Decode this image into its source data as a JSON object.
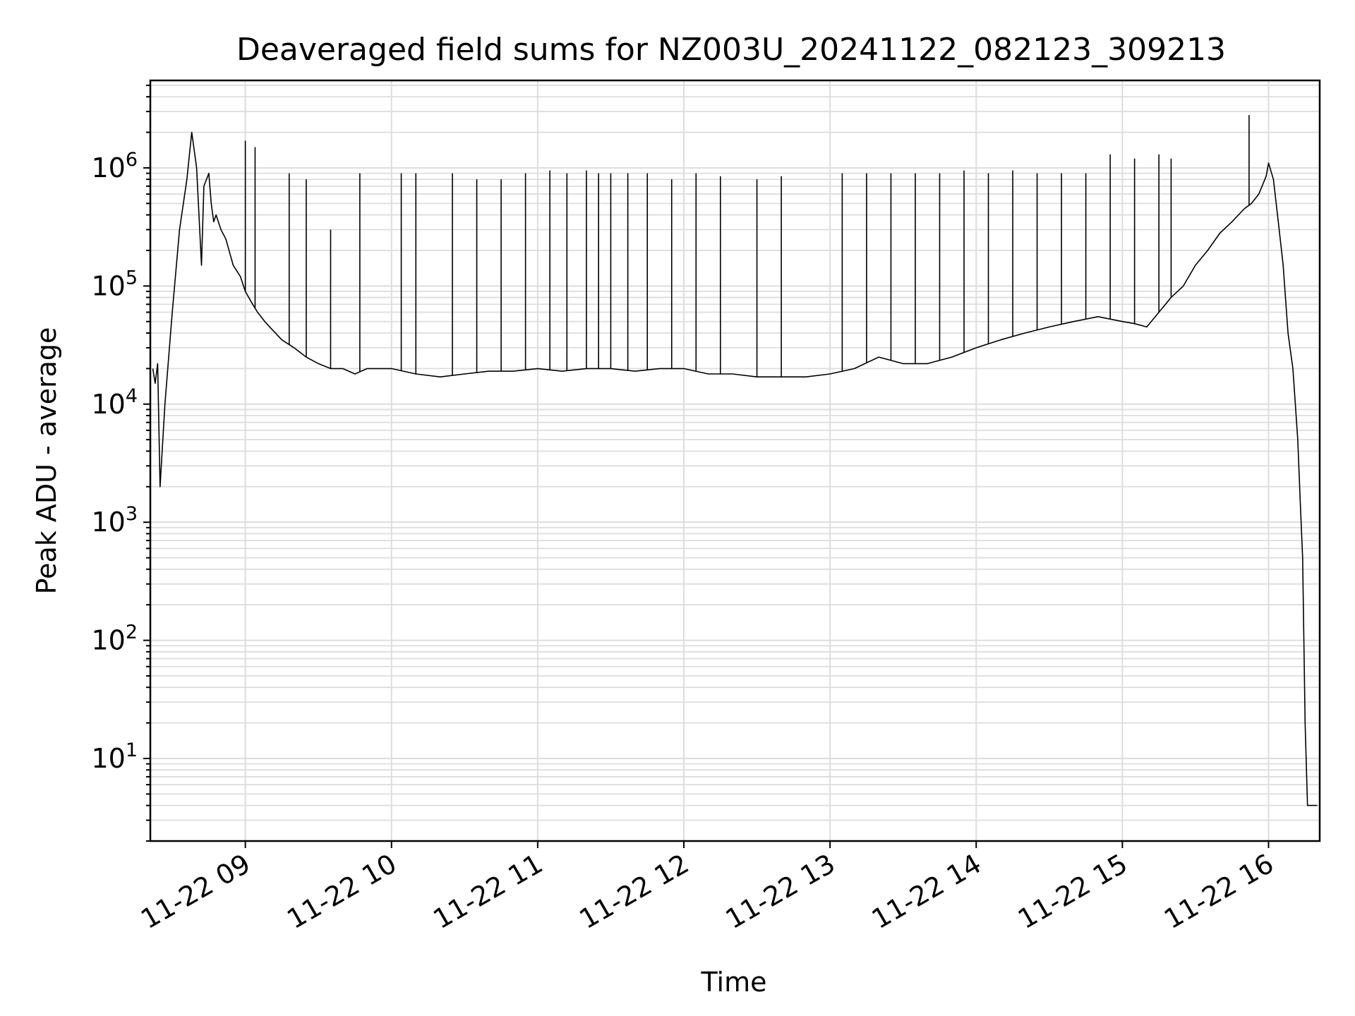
{
  "chart_data": {
    "type": "line",
    "title": "Deaveraged field sums for NZ003U_20241122_082123_309213",
    "xlabel": "Time",
    "ylabel": "Peak ADU - average",
    "yscale": "log",
    "ylim": [
      2,
      5500000
    ],
    "xlim": [
      "2024-11-22 08:21",
      "2024-11-22 16:21"
    ],
    "grid": true,
    "legend": "none",
    "line_color": "#000000",
    "x_ticks": [
      {
        "x": "2024-11-22 09:00",
        "label": "11-22 09"
      },
      {
        "x": "2024-11-22 10:00",
        "label": "11-22 10"
      },
      {
        "x": "2024-11-22 11:00",
        "label": "11-22 11"
      },
      {
        "x": "2024-11-22 12:00",
        "label": "11-22 12"
      },
      {
        "x": "2024-11-22 13:00",
        "label": "11-22 13"
      },
      {
        "x": "2024-11-22 14:00",
        "label": "11-22 14"
      },
      {
        "x": "2024-11-22 15:00",
        "label": "11-22 15"
      },
      {
        "x": "2024-11-22 16:00",
        "label": "11-22 16"
      }
    ],
    "y_ticks": [
      {
        "value": 10,
        "base": "10",
        "exp": "1"
      },
      {
        "value": 100,
        "base": "10",
        "exp": "2"
      },
      {
        "value": 1000,
        "base": "10",
        "exp": "3"
      },
      {
        "value": 10000,
        "base": "10",
        "exp": "4"
      },
      {
        "value": 100000,
        "base": "10",
        "exp": "5"
      },
      {
        "value": 1000000,
        "base": "10",
        "exp": "6"
      }
    ],
    "series": [
      {
        "x": [
          "2024-11-22 08:22",
          "2024-11-22 08:23",
          "2024-11-22 08:24",
          "2024-11-22 08:25",
          "2024-11-22 08:27",
          "2024-11-22 08:30",
          "2024-11-22 08:33",
          "2024-11-22 08:36",
          "2024-11-22 08:38",
          "2024-11-22 08:40",
          "2024-11-22 08:42",
          "2024-11-22 08:43",
          "2024-11-22 08:45",
          "2024-11-22 08:46",
          "2024-11-22 08:47",
          "2024-11-22 08:48",
          "2024-11-22 08:50",
          "2024-11-22 08:52",
          "2024-11-22 08:55",
          "2024-11-22 08:58",
          "2024-11-22 09:00",
          "2024-11-22 09:03",
          "2024-11-22 09:05",
          "2024-11-22 09:08",
          "2024-11-22 09:10",
          "2024-11-22 09:15",
          "2024-11-22 09:20",
          "2024-11-22 09:25",
          "2024-11-22 09:30",
          "2024-11-22 09:35",
          "2024-11-22 09:40",
          "2024-11-22 09:45",
          "2024-11-22 09:50",
          "2024-11-22 10:00",
          "2024-11-22 10:10",
          "2024-11-22 10:20",
          "2024-11-22 10:30",
          "2024-11-22 10:40",
          "2024-11-22 10:50",
          "2024-11-22 11:00",
          "2024-11-22 11:10",
          "2024-11-22 11:20",
          "2024-11-22 11:30",
          "2024-11-22 11:40",
          "2024-11-22 11:50",
          "2024-11-22 12:00",
          "2024-11-22 12:10",
          "2024-11-22 12:20",
          "2024-11-22 12:30",
          "2024-11-22 12:40",
          "2024-11-22 12:50",
          "2024-11-22 13:00",
          "2024-11-22 13:10",
          "2024-11-22 13:20",
          "2024-11-22 13:30",
          "2024-11-22 13:40",
          "2024-11-22 13:50",
          "2024-11-22 14:00",
          "2024-11-22 14:10",
          "2024-11-22 14:20",
          "2024-11-22 14:30",
          "2024-11-22 14:40",
          "2024-11-22 14:50",
          "2024-11-22 15:00",
          "2024-11-22 15:05",
          "2024-11-22 15:10",
          "2024-11-22 15:15",
          "2024-11-22 15:20",
          "2024-11-22 15:25",
          "2024-11-22 15:30",
          "2024-11-22 15:35",
          "2024-11-22 15:40",
          "2024-11-22 15:45",
          "2024-11-22 15:50",
          "2024-11-22 15:53",
          "2024-11-22 15:56",
          "2024-11-22 15:59",
          "2024-11-22 16:00",
          "2024-11-22 16:02",
          "2024-11-22 16:04",
          "2024-11-22 16:06",
          "2024-11-22 16:08",
          "2024-11-22 16:10",
          "2024-11-22 16:12",
          "2024-11-22 16:13",
          "2024-11-22 16:14",
          "2024-11-22 16:15",
          "2024-11-22 16:16",
          "2024-11-22 16:20"
        ],
        "y": [
          20000,
          15000,
          22000,
          2000,
          10000,
          60000,
          300000,
          800000,
          2000000,
          1000000,
          150000,
          700000,
          900000,
          500000,
          350000,
          400000,
          300000,
          250000,
          150000,
          120000,
          90000,
          70000,
          60000,
          50000,
          45000,
          35000,
          30000,
          25000,
          22000,
          20000,
          20000,
          18000,
          20000,
          20000,
          18000,
          17000,
          18000,
          19000,
          19000,
          20000,
          19000,
          20000,
          20000,
          19000,
          20000,
          20000,
          18000,
          18000,
          17000,
          17000,
          17000,
          18000,
          20000,
          25000,
          22000,
          22000,
          25000,
          30000,
          35000,
          40000,
          45000,
          50000,
          55000,
          50000,
          48000,
          45000,
          60000,
          80000,
          100000,
          150000,
          200000,
          280000,
          350000,
          450000,
          500000,
          600000,
          850000,
          1100000,
          800000,
          350000,
          150000,
          40000,
          20000,
          5000,
          1500,
          500,
          20,
          4,
          4
        ],
        "spikes": [
          {
            "x": "2024-11-22 09:00",
            "y": 1700000
          },
          {
            "x": "2024-11-22 09:04",
            "y": 1500000
          },
          {
            "x": "2024-11-22 09:18",
            "y": 900000
          },
          {
            "x": "2024-11-22 09:25",
            "y": 800000
          },
          {
            "x": "2024-11-22 09:35",
            "y": 300000
          },
          {
            "x": "2024-11-22 09:47",
            "y": 900000
          },
          {
            "x": "2024-11-22 10:04",
            "y": 900000
          },
          {
            "x": "2024-11-22 10:10",
            "y": 900000
          },
          {
            "x": "2024-11-22 10:25",
            "y": 900000
          },
          {
            "x": "2024-11-22 10:35",
            "y": 800000
          },
          {
            "x": "2024-11-22 10:45",
            "y": 800000
          },
          {
            "x": "2024-11-22 10:55",
            "y": 900000
          },
          {
            "x": "2024-11-22 11:05",
            "y": 950000
          },
          {
            "x": "2024-11-22 11:12",
            "y": 900000
          },
          {
            "x": "2024-11-22 11:20",
            "y": 950000
          },
          {
            "x": "2024-11-22 11:25",
            "y": 900000
          },
          {
            "x": "2024-11-22 11:30",
            "y": 900000
          },
          {
            "x": "2024-11-22 11:37",
            "y": 900000
          },
          {
            "x": "2024-11-22 11:45",
            "y": 900000
          },
          {
            "x": "2024-11-22 11:55",
            "y": 800000
          },
          {
            "x": "2024-11-22 12:05",
            "y": 900000
          },
          {
            "x": "2024-11-22 12:15",
            "y": 850000
          },
          {
            "x": "2024-11-22 12:30",
            "y": 800000
          },
          {
            "x": "2024-11-22 12:40",
            "y": 850000
          },
          {
            "x": "2024-11-22 13:05",
            "y": 900000
          },
          {
            "x": "2024-11-22 13:15",
            "y": 900000
          },
          {
            "x": "2024-11-22 13:25",
            "y": 900000
          },
          {
            "x": "2024-11-22 13:35",
            "y": 900000
          },
          {
            "x": "2024-11-22 13:45",
            "y": 900000
          },
          {
            "x": "2024-11-22 13:55",
            "y": 950000
          },
          {
            "x": "2024-11-22 14:05",
            "y": 900000
          },
          {
            "x": "2024-11-22 14:15",
            "y": 950000
          },
          {
            "x": "2024-11-22 14:25",
            "y": 900000
          },
          {
            "x": "2024-11-22 14:35",
            "y": 900000
          },
          {
            "x": "2024-11-22 14:45",
            "y": 900000
          },
          {
            "x": "2024-11-22 14:55",
            "y": 1300000
          },
          {
            "x": "2024-11-22 15:05",
            "y": 1200000
          },
          {
            "x": "2024-11-22 15:15",
            "y": 1300000
          },
          {
            "x": "2024-11-22 15:20",
            "y": 1200000
          },
          {
            "x": "2024-11-22 15:52",
            "y": 2800000
          }
        ]
      }
    ]
  }
}
